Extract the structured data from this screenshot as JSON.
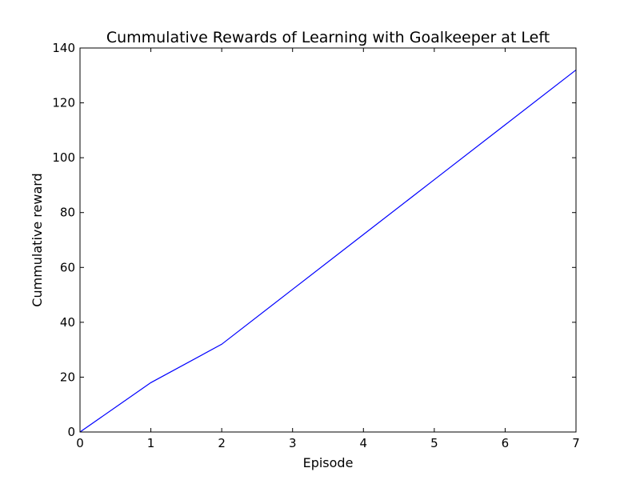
{
  "chart_data": {
    "type": "line",
    "title": "Cummulative Rewards of Learning with Goalkeeper at Left",
    "xlabel": "Episode",
    "ylabel": "Cummulative reward",
    "xlim": [
      0,
      7
    ],
    "ylim": [
      0,
      140
    ],
    "xticks": [
      0,
      1,
      2,
      3,
      4,
      5,
      6,
      7
    ],
    "yticks": [
      0,
      20,
      40,
      60,
      80,
      100,
      120,
      140
    ],
    "grid": false,
    "series": [
      {
        "color": "#0000ff",
        "x": [
          0,
          1,
          2,
          3,
          4,
          5,
          6,
          7
        ],
        "y": [
          0,
          18,
          32,
          52,
          72,
          92,
          112,
          132
        ]
      }
    ]
  }
}
